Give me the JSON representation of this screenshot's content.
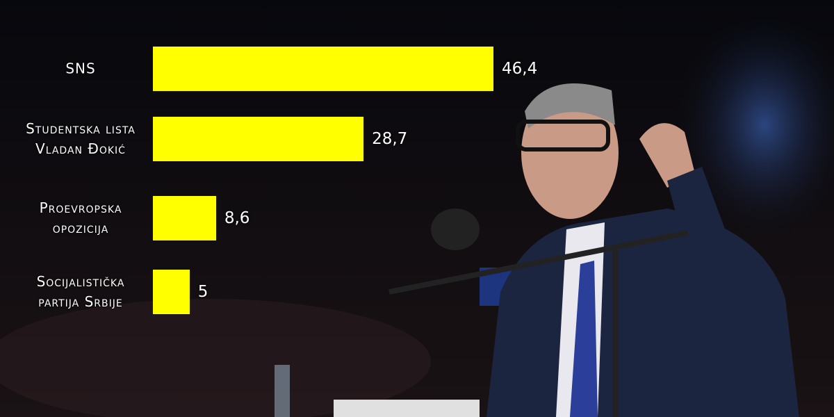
{
  "chart_data": {
    "type": "bar",
    "orientation": "horizontal",
    "categories": [
      "SNS",
      "Studentska lista Vladan Đokić",
      "Proevropska opozicija",
      "Socijalistička partija Srbije"
    ],
    "values": [
      46.4,
      28.7,
      8.6,
      5
    ],
    "value_labels": [
      "46,4",
      "28,7",
      "8,6",
      "5"
    ],
    "color": "#ffff00"
  }
}
